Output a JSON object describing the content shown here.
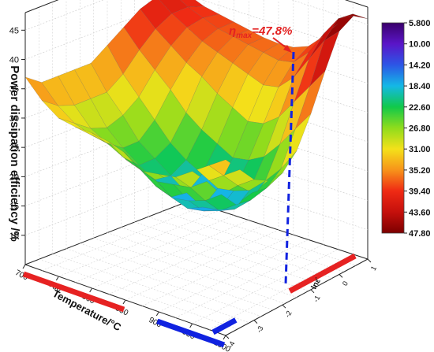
{
  "chart_data": {
    "type": "surface3d",
    "zlabel": "Power dissipation efficiency /%",
    "xlabel": "Temperature/°C",
    "ylabel": "lnε̇",
    "x_ticks": [
      "700",
      "750",
      "800",
      "850",
      "900",
      "950",
      "1000"
    ],
    "y_ticks": [
      "-4",
      "-3",
      "-2",
      "-1",
      "0",
      "1"
    ],
    "z_ticks": [
      "10",
      "15",
      "20",
      "25",
      "30",
      "35",
      "40",
      "45"
    ],
    "zlim": [
      5,
      48
    ],
    "colorbar": {
      "ticks": [
        "5.800",
        "10.00",
        "14.20",
        "18.40",
        "22.60",
        "26.80",
        "31.00",
        "35.20",
        "39.40",
        "43.60",
        "47.80"
      ],
      "colors": [
        "#3a006b",
        "#5a15c8",
        "#2c56e6",
        "#14b8e6",
        "#11c94a",
        "#8fdc1c",
        "#f4e11a",
        "#f7931a",
        "#ef2a14",
        "#c5100c",
        "#7c0000"
      ]
    },
    "annotation": {
      "prefix": "η",
      "subscript": "max",
      "value": "=47.8%"
    },
    "highlight_ranges": [
      {
        "axis": "temperature",
        "from": 700,
        "to": 850,
        "color": "#e62222"
      },
      {
        "axis": "temperature",
        "from": 900,
        "to": 1000,
        "color": "#1022e0"
      },
      {
        "axis": "strain_rate",
        "from": -1.3,
        "to": 1,
        "color": "#e62222"
      },
      {
        "axis": "strain_rate",
        "from": -4,
        "to": -3.2,
        "color": "#1022e0"
      }
    ],
    "surface": {
      "note_grid_u": "temperature from 700 to 1000",
      "note_grid_v": "lnε̇ from -4 to 1",
      "z": [
        [
          37,
          34,
          32,
          31.5,
          31.5,
          31,
          29,
          28,
          28.5,
          29,
          31,
          33,
          35
        ],
        [
          35,
          32,
          30,
          29,
          28.5,
          28,
          26,
          25,
          25.5,
          26,
          28,
          30,
          32
        ],
        [
          35,
          31,
          28,
          26.5,
          25,
          24,
          22,
          21,
          21.5,
          22.5,
          24.5,
          27,
          29
        ],
        [
          35,
          31,
          27,
          24.5,
          22.5,
          21,
          19,
          18,
          18.5,
          19.5,
          21.5,
          24.5,
          27.5
        ],
        [
          35,
          31,
          28,
          24.5,
          22.5,
          20.5,
          18.5,
          17,
          17.5,
          18.5,
          21,
          24,
          27.5
        ],
        [
          37,
          33,
          30,
          27,
          24,
          22,
          20.5,
          19,
          19.5,
          20.5,
          23,
          26,
          30
        ],
        [
          39,
          36,
          33.5,
          31,
          28,
          26,
          24.5,
          23,
          23.5,
          25,
          28,
          31.5,
          35
        ],
        [
          41,
          38.5,
          36.5,
          34.5,
          33,
          31,
          29.5,
          28,
          28.5,
          30.5,
          34,
          37.5,
          41
        ],
        [
          42,
          40,
          38.5,
          37,
          36,
          35,
          34,
          33,
          33.5,
          36,
          40,
          44,
          46.5
        ],
        [
          41.5,
          40,
          39,
          38,
          37.5,
          37,
          36.5,
          36,
          36.5,
          39,
          43,
          46.5,
          47.8
        ],
        [
          40,
          39,
          38.5,
          38,
          37.5,
          37,
          36.8,
          37,
          38,
          40.5,
          43.5,
          46,
          46
        ]
      ]
    }
  }
}
